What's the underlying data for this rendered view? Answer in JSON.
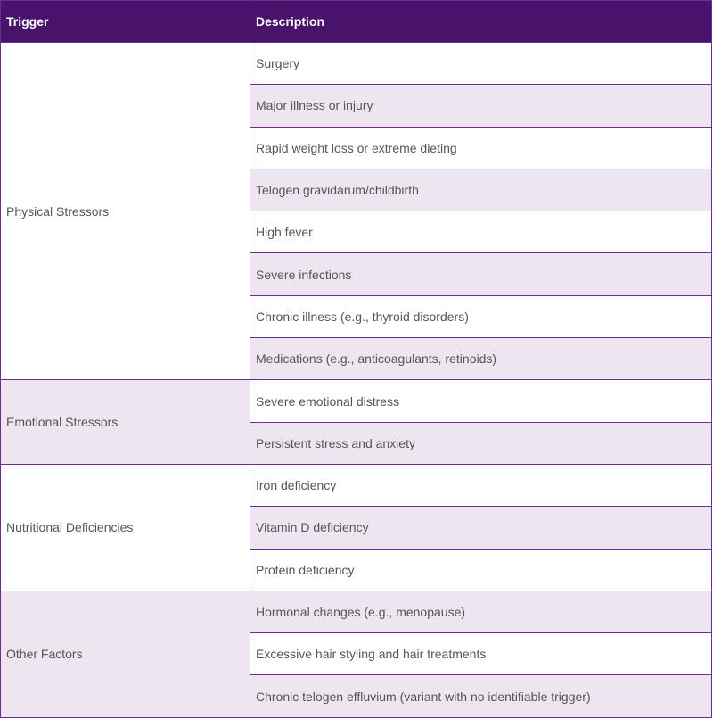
{
  "header": {
    "trigger": "Trigger",
    "description": "Description"
  },
  "groups": [
    {
      "trigger": "Physical Stressors",
      "items": [
        "Surgery",
        "Major illness or injury",
        "Rapid weight loss or extreme dieting",
        "Telogen gravidarum/childbirth",
        "High fever",
        "Severe infections",
        "Chronic illness (e.g., thyroid disorders)",
        "Medications (e.g., anticoagulants, retinoids)"
      ]
    },
    {
      "trigger": "Emotional Stressors",
      "items": [
        "Severe emotional distress",
        "Persistent stress and anxiety"
      ]
    },
    {
      "trigger": "Nutritional Deficiencies",
      "items": [
        "Iron deficiency",
        "Vitamin D deficiency",
        "Protein deficiency"
      ]
    },
    {
      "trigger": "Other Factors",
      "items": [
        "Hormonal changes (e.g., menopause)",
        "Excessive hair styling and hair treatments",
        "Chronic telogen effluvium (variant with no identifiable trigger)"
      ]
    }
  ],
  "colors": {
    "header_bg": "#4a136b",
    "border": "#6b2d93",
    "stripe": "#ede6f1"
  }
}
